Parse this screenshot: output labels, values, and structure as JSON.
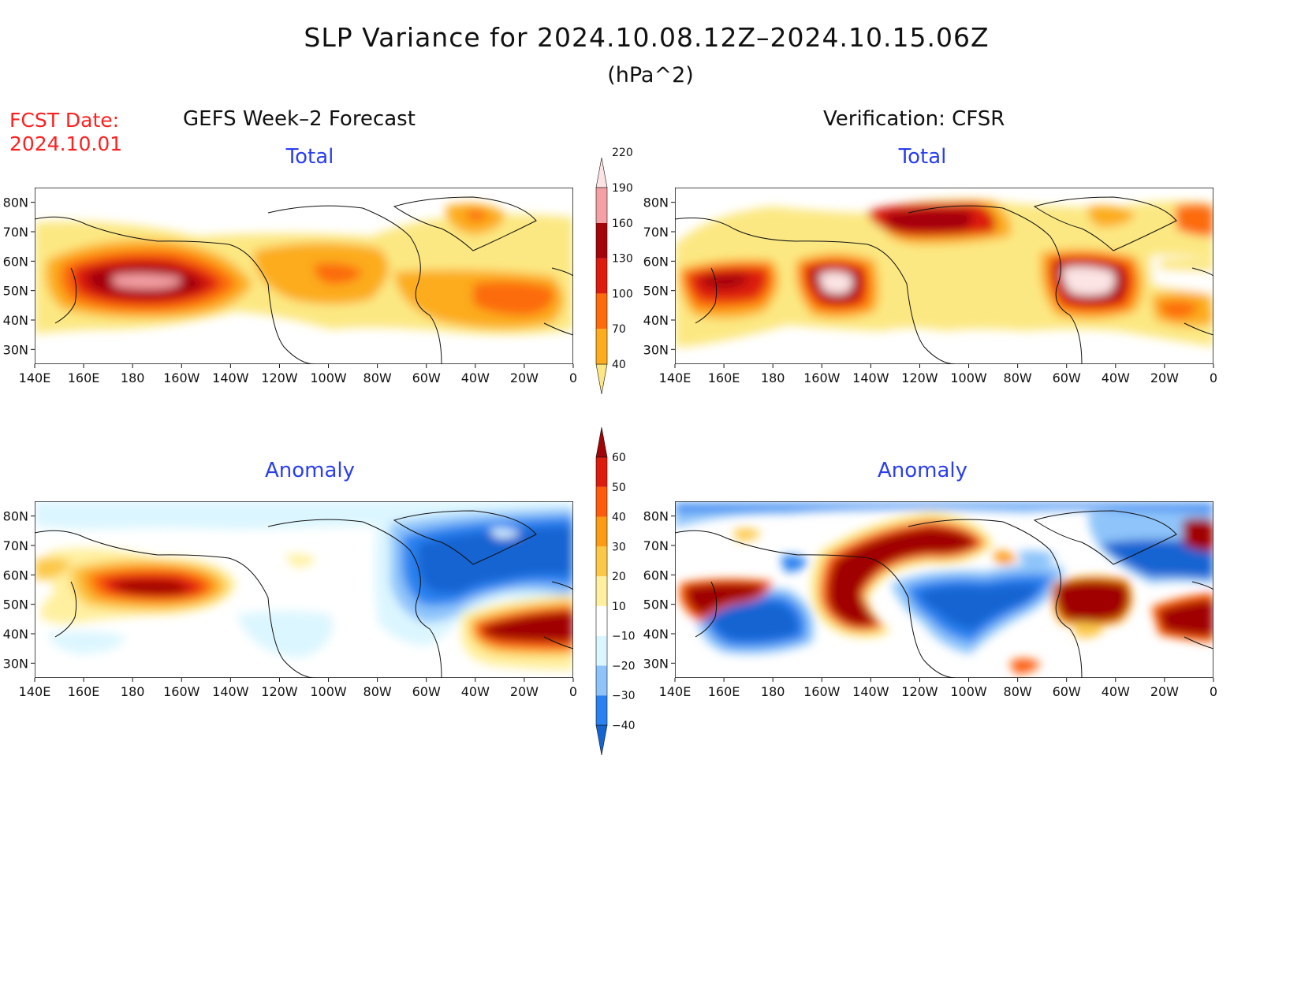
{
  "title": "SLP Variance for 2024.10.08.12Z–2024.10.15.06Z",
  "units": "(hPa^2)",
  "fcst_date": {
    "line1": "FCST Date:",
    "line2": "2024.10.01"
  },
  "columns": {
    "left": "GEFS Week–2 Forecast",
    "right": "Verification: CFSR"
  },
  "panels": {
    "top_left": "Total",
    "top_right": "Total",
    "bottom_left": "Anomaly",
    "bottom_right": "Anomaly"
  },
  "axes": {
    "lat_labels": [
      "80N",
      "70N",
      "60N",
      "50N",
      "40N",
      "30N"
    ],
    "lon_labels": [
      "140E",
      "160E",
      "180",
      "160W",
      "140W",
      "120W",
      "100W",
      "80W",
      "60W",
      "40W",
      "20W",
      "0"
    ],
    "lat_range": [
      25,
      85
    ],
    "lon_range": [
      140,
      360
    ]
  },
  "colorbar_total": {
    "labels": [
      "40",
      "70",
      "100",
      "130",
      "160",
      "190",
      "220"
    ],
    "colors": [
      "#fce882",
      "#fcac1c",
      "#fc6c0c",
      "#dc1c0c",
      "#a4040a",
      "#f4a0a4",
      "#fce4e4"
    ]
  },
  "colorbar_anomaly": {
    "labels": [
      "−40",
      "−30",
      "−20",
      "−10",
      "10",
      "20",
      "30",
      "40",
      "50",
      "60"
    ],
    "colors": [
      "#1464d2",
      "#2a82f0",
      "#8ec4fa",
      "#dcf6ff",
      "#ffffff",
      "#fff0a0",
      "#fcc848",
      "#fc9c14",
      "#fc5c0c",
      "#dc1c0c",
      "#a00404"
    ]
  }
}
